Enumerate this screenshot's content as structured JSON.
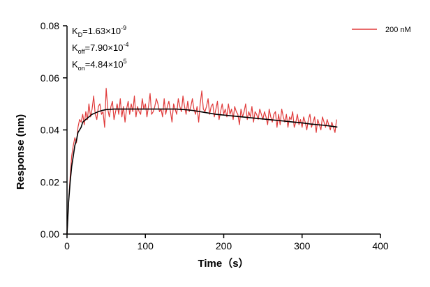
{
  "chart_data": {
    "type": "line",
    "xlabel": "Time（s）",
    "ylabel": "Response (nm)",
    "xlim": [
      0,
      400
    ],
    "ylim": [
      0,
      0.08
    ],
    "x_ticks": [
      "0",
      "100",
      "200",
      "300",
      "400"
    ],
    "y_ticks": [
      "0.00",
      "0.02",
      "0.04",
      "0.06",
      "0.08"
    ],
    "grid": false,
    "legend_position": "top-right",
    "annotations": [
      {
        "main": "K",
        "sub": "D",
        "rest": "=1.63×10",
        "sup": "-9"
      },
      {
        "main": "K",
        "sub": "off",
        "rest": "=7.90×10",
        "sup": "-4"
      },
      {
        "main": "K",
        "sub": "on",
        "rest": "=4.84×10",
        "sup": "5"
      }
    ],
    "series": [
      {
        "name": "200 nM",
        "color": "#e03a3a",
        "x": [
          0,
          2,
          4,
          6,
          8,
          10,
          12,
          14,
          16,
          18,
          20,
          22,
          24,
          26,
          28,
          30,
          32,
          34,
          36,
          38,
          40,
          42,
          44,
          46,
          48,
          50,
          52,
          54,
          56,
          58,
          60,
          62,
          64,
          66,
          68,
          70,
          72,
          74,
          76,
          78,
          80,
          82,
          84,
          86,
          88,
          90,
          92,
          94,
          96,
          98,
          100,
          102,
          104,
          106,
          108,
          110,
          112,
          114,
          116,
          118,
          120,
          122,
          124,
          126,
          128,
          130,
          132,
          134,
          136,
          138,
          140,
          142,
          144,
          146,
          148,
          150,
          152,
          154,
          156,
          158,
          160,
          162,
          164,
          166,
          168,
          170,
          172,
          174,
          176,
          178,
          180,
          182,
          184,
          186,
          188,
          190,
          192,
          194,
          196,
          198,
          200,
          202,
          204,
          206,
          208,
          210,
          212,
          214,
          216,
          218,
          220,
          222,
          224,
          226,
          228,
          230,
          232,
          234,
          236,
          238,
          240,
          242,
          244,
          246,
          248,
          250,
          252,
          254,
          256,
          258,
          260,
          262,
          264,
          266,
          268,
          270,
          272,
          274,
          276,
          278,
          280,
          282,
          284,
          286,
          288,
          290,
          292,
          294,
          296,
          298,
          300,
          302,
          304,
          306,
          308,
          310,
          312,
          314,
          316,
          318,
          320,
          322,
          324,
          326,
          328,
          330,
          332,
          334,
          336,
          338,
          340,
          342,
          344
        ],
        "values": [
          0.0,
          0.012,
          0.022,
          0.03,
          0.034,
          0.037,
          0.035,
          0.041,
          0.044,
          0.043,
          0.046,
          0.042,
          0.047,
          0.044,
          0.05,
          0.045,
          0.048,
          0.053,
          0.046,
          0.044,
          0.049,
          0.05,
          0.046,
          0.047,
          0.041,
          0.056,
          0.048,
          0.045,
          0.049,
          0.051,
          0.044,
          0.047,
          0.05,
          0.046,
          0.052,
          0.045,
          0.049,
          0.043,
          0.048,
          0.051,
          0.046,
          0.05,
          0.047,
          0.053,
          0.045,
          0.049,
          0.047,
          0.046,
          0.052,
          0.048,
          0.05,
          0.045,
          0.049,
          0.054,
          0.046,
          0.047,
          0.049,
          0.052,
          0.05,
          0.047,
          0.048,
          0.045,
          0.052,
          0.046,
          0.049,
          0.051,
          0.047,
          0.043,
          0.05,
          0.048,
          0.046,
          0.052,
          0.049,
          0.047,
          0.053,
          0.049,
          0.046,
          0.051,
          0.047,
          0.049,
          0.052,
          0.048,
          0.046,
          0.049,
          0.043,
          0.05,
          0.055,
          0.048,
          0.047,
          0.049,
          0.052,
          0.046,
          0.049,
          0.05,
          0.045,
          0.048,
          0.051,
          0.044,
          0.047,
          0.05,
          0.046,
          0.048,
          0.045,
          0.05,
          0.046,
          0.048,
          0.044,
          0.049,
          0.047,
          0.046,
          0.042,
          0.048,
          0.045,
          0.047,
          0.05,
          0.044,
          0.047,
          0.045,
          0.049,
          0.043,
          0.047,
          0.046,
          0.044,
          0.048,
          0.046,
          0.044,
          0.047,
          0.045,
          0.042,
          0.048,
          0.045,
          0.043,
          0.046,
          0.047,
          0.041,
          0.046,
          0.042,
          0.048,
          0.045,
          0.043,
          0.046,
          0.041,
          0.045,
          0.044,
          0.047,
          0.041,
          0.043,
          0.046,
          0.042,
          0.044,
          0.041,
          0.045,
          0.043,
          0.04,
          0.044,
          0.046,
          0.041,
          0.043,
          0.045,
          0.039,
          0.044,
          0.042,
          0.04,
          0.045,
          0.043,
          0.041,
          0.044,
          0.042,
          0.04,
          0.043,
          0.041,
          0.039,
          0.044
        ]
      },
      {
        "color": "#000000",
        "x": [
          0,
          2,
          4,
          6,
          8,
          10,
          12,
          14,
          16,
          18,
          20,
          24,
          28,
          32,
          36,
          40,
          45,
          50,
          60,
          70,
          80,
          90,
          100,
          110,
          120,
          130,
          140,
          150,
          160,
          170,
          180,
          190,
          200,
          210,
          220,
          230,
          240,
          250,
          260,
          270,
          280,
          290,
          300,
          310,
          320,
          330,
          340,
          345
        ],
        "values": [
          0.0,
          0.012,
          0.02,
          0.026,
          0.03,
          0.034,
          0.036,
          0.039,
          0.04,
          0.041,
          0.043,
          0.044,
          0.045,
          0.046,
          0.0465,
          0.047,
          0.0475,
          0.0478,
          0.048,
          0.048,
          0.048,
          0.048,
          0.048,
          0.048,
          0.048,
          0.048,
          0.048,
          0.0478,
          0.0475,
          0.047,
          0.0465,
          0.046,
          0.0457,
          0.0454,
          0.0451,
          0.0448,
          0.0445,
          0.0442,
          0.0439,
          0.0436,
          0.0433,
          0.043,
          0.0427,
          0.0423,
          0.042,
          0.0417,
          0.0413,
          0.0411
        ]
      }
    ]
  }
}
